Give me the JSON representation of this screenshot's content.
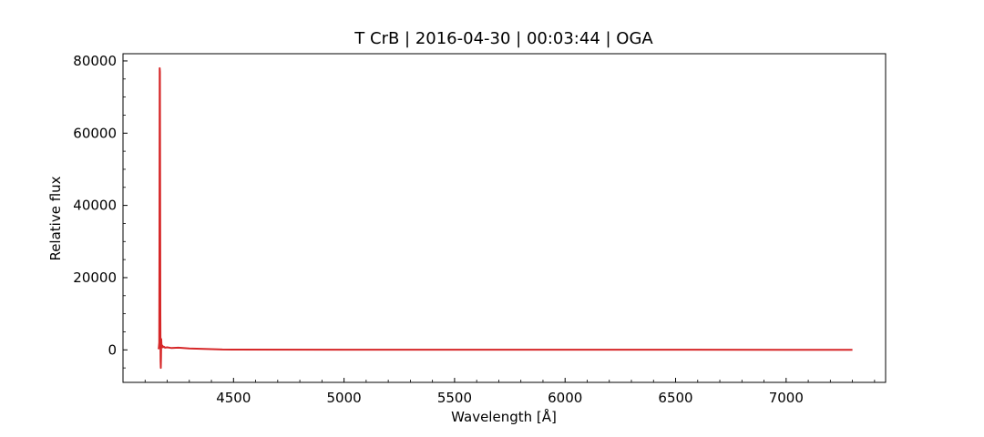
{
  "chart_data": {
    "type": "line",
    "title": "T CrB | 2016-04-30 | 00:03:44 | OGA",
    "xlabel": "Wavelength [Å]",
    "ylabel": "Relative flux",
    "xlim": [
      4000,
      7450
    ],
    "ylim": [
      -9000,
      82000
    ],
    "x_ticks": [
      4500,
      5000,
      5500,
      6000,
      6500,
      7000
    ],
    "x_tick_labels": [
      "4500",
      "5000",
      "5500",
      "6000",
      "6500",
      "7000"
    ],
    "y_ticks": [
      0,
      20000,
      40000,
      60000,
      80000
    ],
    "y_tick_labels": [
      "0",
      "20000",
      "40000",
      "60000",
      "80000"
    ],
    "grid": false,
    "series": [
      {
        "color": "#d62728",
        "x": [
          4160,
          4162,
          4164,
          4165,
          4166,
          4167,
          4168,
          4169,
          4170,
          4171,
          4172,
          4173,
          4174,
          4176,
          4178,
          4180,
          4185,
          4190,
          4200,
          4220,
          4250,
          4300,
          4350,
          4400,
          4450,
          4500,
          5000,
          5500,
          6000,
          6500,
          7000,
          7300
        ],
        "y": [
          200,
          500,
          2000,
          30000,
          78000,
          77000,
          45000,
          10000,
          -3000,
          -5000,
          -2000,
          3000,
          1500,
          800,
          1200,
          700,
          900,
          600,
          700,
          500,
          600,
          400,
          300,
          200,
          100,
          80,
          50,
          40,
          30,
          30,
          20,
          20
        ]
      }
    ]
  }
}
